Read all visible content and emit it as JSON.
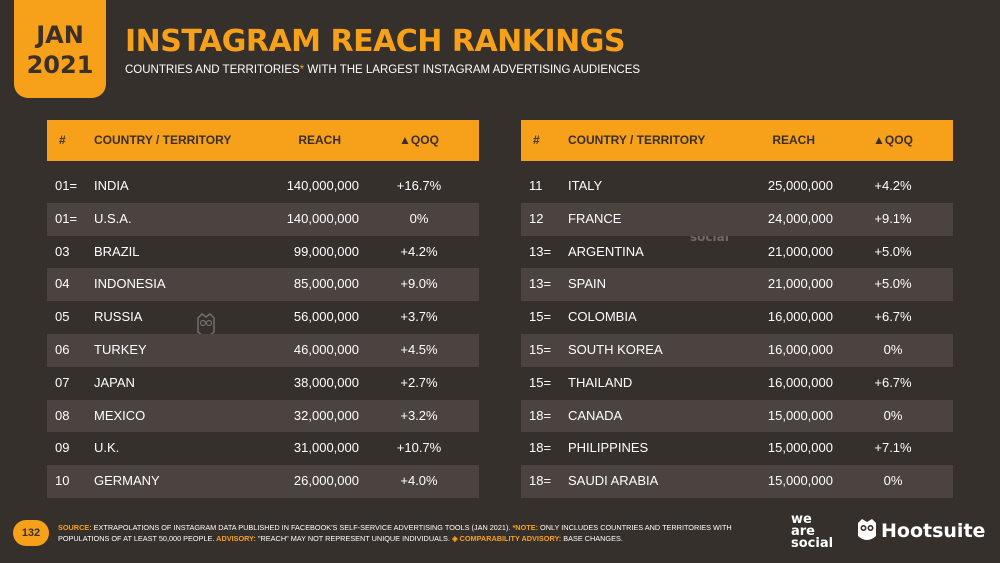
{
  "date_tab": {
    "month": "JAN",
    "year": "2021"
  },
  "title": "INSTAGRAM REACH RANKINGS",
  "subtitle": {
    "before": "COUNTRIES AND TERRITORIES",
    "asterisk": "*",
    "after": " WITH THE LARGEST INSTAGRAM ADVERTISING AUDIENCES"
  },
  "columns": {
    "rank": "#",
    "country": "COUNTRY / TERRITORY",
    "reach": "REACH",
    "qoq": "▲QOQ"
  },
  "left_table": [
    {
      "rank": "01=",
      "country": "INDIA",
      "reach": "140,000,000",
      "qoq": "+16.7%"
    },
    {
      "rank": "01=",
      "country": "U.S.A.",
      "reach": "140,000,000",
      "qoq": "0%"
    },
    {
      "rank": "03",
      "country": "BRAZIL",
      "reach": "99,000,000",
      "qoq": "+4.2%"
    },
    {
      "rank": "04",
      "country": "INDONESIA",
      "reach": "85,000,000",
      "qoq": "+9.0%"
    },
    {
      "rank": "05",
      "country": "RUSSIA",
      "reach": "56,000,000",
      "qoq": "+3.7%"
    },
    {
      "rank": "06",
      "country": "TURKEY",
      "reach": "46,000,000",
      "qoq": "+4.5%"
    },
    {
      "rank": "07",
      "country": "JAPAN",
      "reach": "38,000,000",
      "qoq": "+2.7%"
    },
    {
      "rank": "08",
      "country": "MEXICO",
      "reach": "32,000,000",
      "qoq": "+3.2%"
    },
    {
      "rank": "09",
      "country": "U.K.",
      "reach": "31,000,000",
      "qoq": "+10.7%"
    },
    {
      "rank": "10",
      "country": "GERMANY",
      "reach": "26,000,000",
      "qoq": "+4.0%"
    }
  ],
  "right_table": [
    {
      "rank": "11",
      "country": "ITALY",
      "reach": "25,000,000",
      "qoq": "+4.2%"
    },
    {
      "rank": "12",
      "country": "FRANCE",
      "reach": "24,000,000",
      "qoq": "+9.1%"
    },
    {
      "rank": "13=",
      "country": "ARGENTINA",
      "reach": "21,000,000",
      "qoq": "+5.0%"
    },
    {
      "rank": "13=",
      "country": "SPAIN",
      "reach": "21,000,000",
      "qoq": "+5.0%"
    },
    {
      "rank": "15=",
      "country": "COLOMBIA",
      "reach": "16,000,000",
      "qoq": "+6.7%"
    },
    {
      "rank": "15=",
      "country": "SOUTH KOREA",
      "reach": "16,000,000",
      "qoq": "0%"
    },
    {
      "rank": "15=",
      "country": "THAILAND",
      "reach": "16,000,000",
      "qoq": "+6.7%"
    },
    {
      "rank": "18=",
      "country": "CANADA",
      "reach": "15,000,000",
      "qoq": "0%"
    },
    {
      "rank": "18=",
      "country": "PHILIPPINES",
      "reach": "15,000,000",
      "qoq": "+7.1%"
    },
    {
      "rank": "18=",
      "country": "SAUDI ARABIA",
      "reach": "15,000,000",
      "qoq": "0%"
    }
  ],
  "footer": {
    "source_label": "SOURCE:",
    "source_text": " EXTRAPOLATIONS OF INSTAGRAM DATA PUBLISHED IN FACEBOOK'S SELF-SERVICE ADVERTISING TOOLS (JAN 2021).",
    "note_label": " *NOTE:",
    "note_text": " ONLY INCLUDES COUNTRIES AND TERRITORIES WITH POPULATIONS OF AT LEAST 50,000 PEOPLE.",
    "advisory_label": " ADVISORY:",
    "advisory_text": " \"REACH\" MAY NOT REPRESENT UNIQUE INDIVIDUALS.",
    "comparability_label": " ◈ COMPARABILITY ADVISORY:",
    "comparability_text": " BASE CHANGES."
  },
  "page_number": "132",
  "logos": {
    "we_are_social": [
      "we",
      "are",
      "social"
    ],
    "hootsuite": "Hootsuite"
  },
  "watermark": [
    "we",
    "are",
    "social"
  ],
  "colors": {
    "accent": "#f7a11a",
    "background": "#36302d",
    "row_alt": "#4a4340"
  }
}
